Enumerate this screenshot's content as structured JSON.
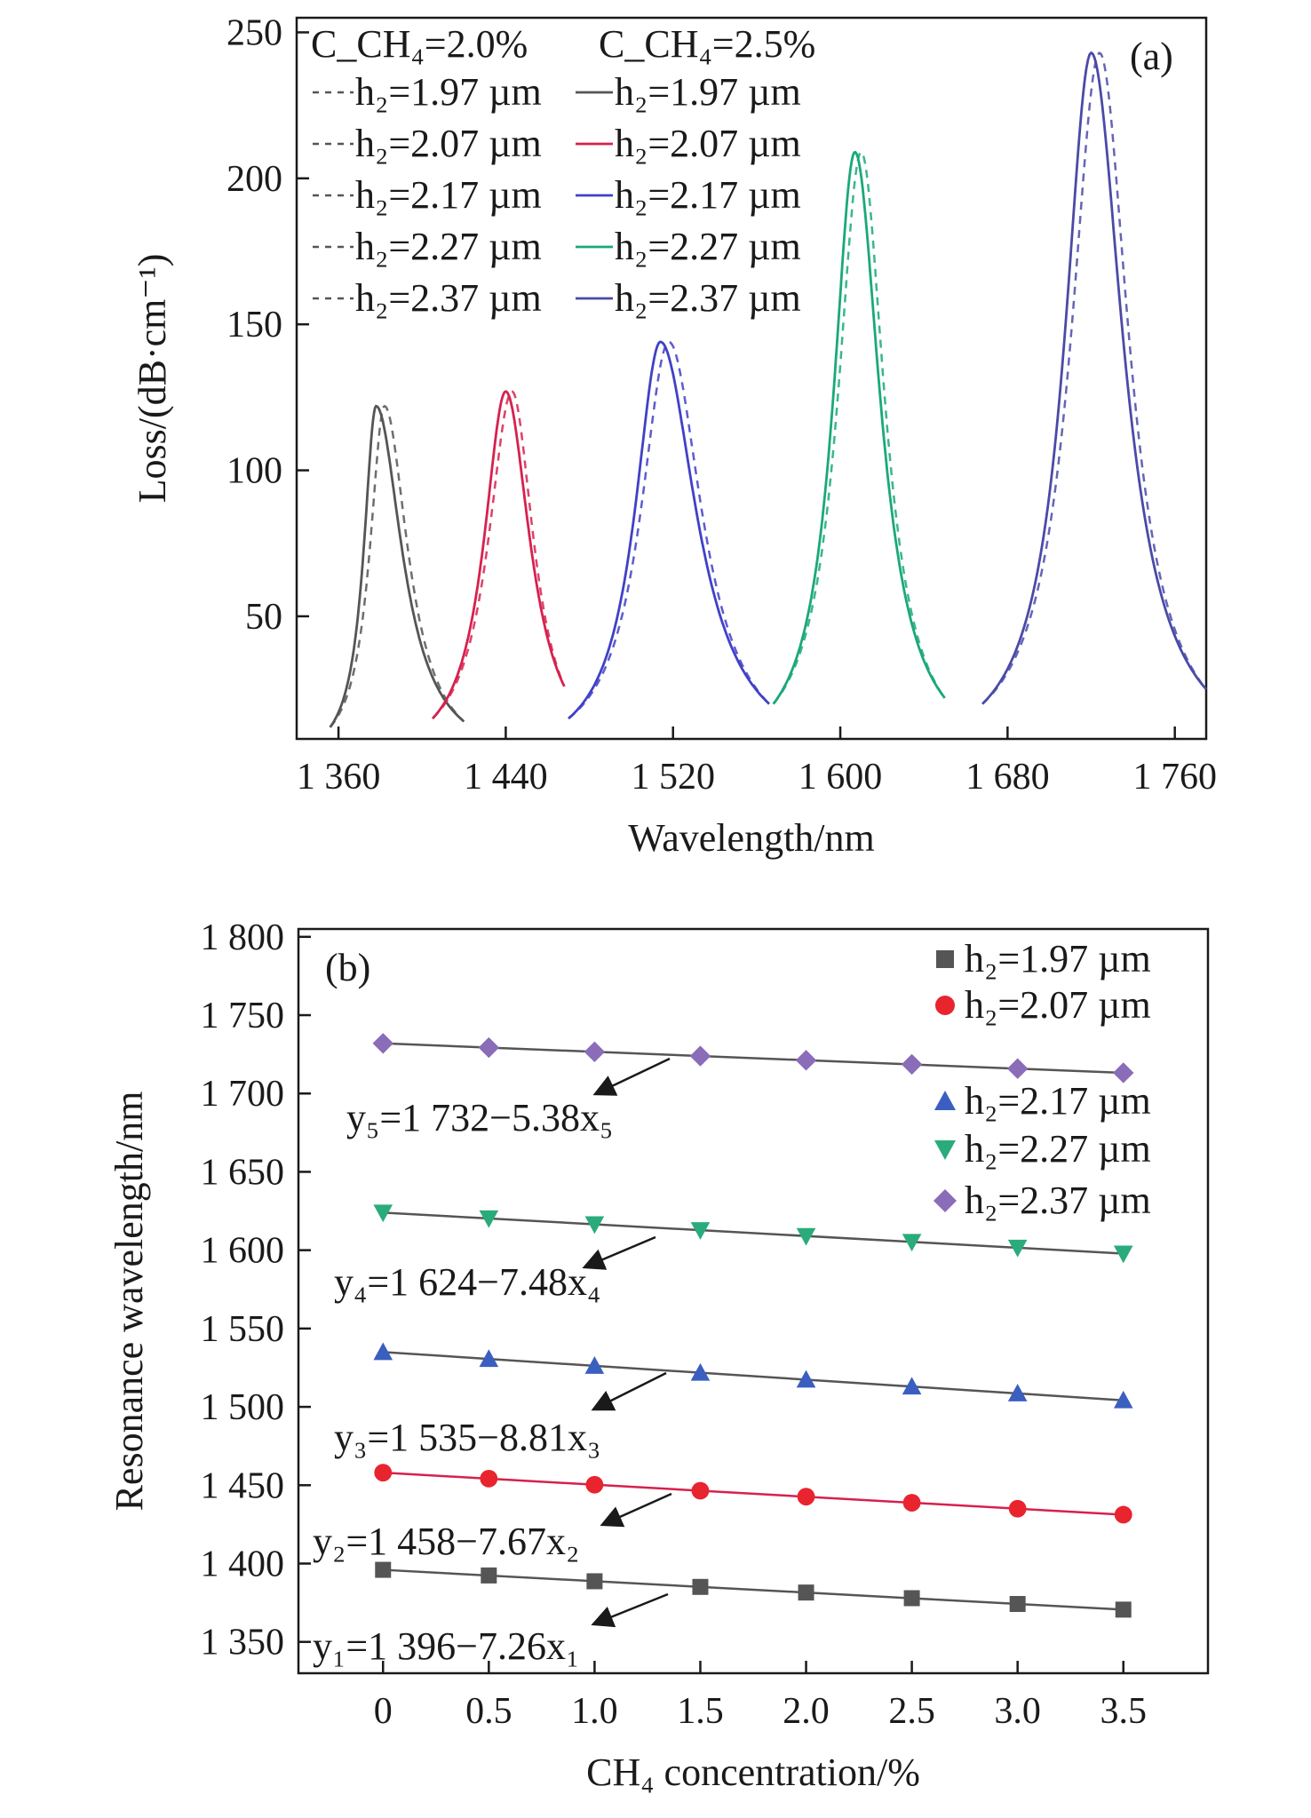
{
  "chart_data": [
    {
      "type": "line",
      "panel_label": "(a)",
      "xlabel": "Wavelength/nm",
      "ylabel": "Loss/(dB·cm⁻¹)",
      "xlim": [
        1340,
        1775
      ],
      "ylim": [
        8,
        255
      ],
      "x_ticks": [
        1360,
        1440,
        1520,
        1600,
        1680,
        1760
      ],
      "x_tick_labels": [
        "1 360",
        "1 440",
        "1 520",
        "1 600",
        "1 680",
        "1 760"
      ],
      "y_ticks": [
        50,
        100,
        150,
        200,
        250
      ],
      "y_tick_labels": [
        "50",
        "100",
        "150",
        "200",
        "250"
      ],
      "legend": {
        "headers": [
          "C_CH₄=2.0%",
          "C_CH₄=2.5%"
        ],
        "entries": [
          {
            "dashed": "h₂=1.97 µm",
            "solid": "h₂=1.97 µm"
          },
          {
            "dashed": "h₂=2.07 µm",
            "solid": "h₂=2.07 µm"
          },
          {
            "dashed": "h₂=2.17 µm",
            "solid": "h₂=2.17 µm"
          },
          {
            "dashed": "h₂=2.27 µm",
            "solid": "h₂=2.27 µm"
          },
          {
            "dashed": "h₂=2.37 µm",
            "solid": "h₂=2.37 µm"
          }
        ],
        "placement": "top-left"
      },
      "grid": false,
      "series": [
        {
          "peak_dashed": 1382,
          "peak_solid": 1378,
          "peak_loss": 122,
          "range": [
            1356,
            1420
          ],
          "end_loss_left": 12,
          "end_loss_right": 14,
          "color": "#555555"
        },
        {
          "peak_dashed": 1443,
          "peak_solid": 1440,
          "peak_loss": 127,
          "range": [
            1405,
            1468
          ],
          "end_loss_left": 15,
          "end_loss_right": 26,
          "color": "#d6214d"
        },
        {
          "peak_dashed": 1518,
          "peak_solid": 1514,
          "peak_loss": 144,
          "range": [
            1470,
            1566
          ],
          "end_loss_left": 15,
          "end_loss_right": 20,
          "color": "#4040c8"
        },
        {
          "peak_dashed": 1610,
          "peak_solid": 1607,
          "peak_loss": 209,
          "range": [
            1568,
            1650
          ],
          "end_loss_left": 20,
          "end_loss_right": 22,
          "color": "#1aa87a"
        },
        {
          "peak_dashed": 1724,
          "peak_solid": 1720,
          "peak_loss": 243,
          "range": [
            1668,
            1775
          ],
          "end_loss_left": 20,
          "end_loss_right": 25,
          "color": "#4a4aa8"
        }
      ]
    },
    {
      "type": "scatter",
      "panel_label": "(b)",
      "xlabel": "CH₄ concentration/%",
      "ylabel": "Resonance wavelength/nm",
      "xlim": [
        -0.4,
        3.9
      ],
      "ylim": [
        1330,
        1805
      ],
      "x": [
        0,
        0.5,
        1.0,
        1.5,
        2.0,
        2.5,
        3.0,
        3.5
      ],
      "x_tick_labels": [
        "0",
        "0.5",
        "1.0",
        "1.5",
        "2.0",
        "2.5",
        "3.0",
        "3.5"
      ],
      "y_ticks": [
        1350,
        1400,
        1450,
        1500,
        1550,
        1600,
        1650,
        1700,
        1750,
        1800
      ],
      "y_tick_labels": [
        "1 350",
        "1 400",
        "1 450",
        "1 500",
        "1 550",
        "1 600",
        "1 650",
        "1 700",
        "1 750",
        "1 800"
      ],
      "grid": false,
      "legend_placement": "top-right",
      "series": [
        {
          "name": "h₂=1.97 µm",
          "marker": "square",
          "color": "#555555",
          "line_color": "#555555",
          "values": [
            1396,
            1392.4,
            1388.7,
            1385.1,
            1381.5,
            1377.9,
            1374.2,
            1370.6
          ],
          "fit": "y₁=1 396−7.26x₁",
          "intercept": 1396,
          "slope": -7.26
        },
        {
          "name": "h₂=2.07 µm",
          "marker": "circle",
          "color": "#e8242f",
          "line_color": "#d6214d",
          "values": [
            1458,
            1454.2,
            1450.3,
            1446.5,
            1442.7,
            1438.8,
            1435.0,
            1431.2
          ],
          "fit": "y₂=1 458−7.67x₂",
          "intercept": 1458,
          "slope": -7.67
        },
        {
          "name": "h₂=2.17 µm",
          "marker": "triangle-up",
          "color": "#3a5fc0",
          "line_color": "#555555",
          "values": [
            1535,
            1530.6,
            1526.2,
            1521.8,
            1517.4,
            1513.0,
            1508.6,
            1504.2
          ],
          "fit": "y₃=1 535−8.81x₃",
          "intercept": 1535,
          "slope": -8.81
        },
        {
          "name": "h₂=2.27 µm",
          "marker": "triangle-down",
          "color": "#2aab7c",
          "line_color": "#555555",
          "values": [
            1624,
            1620.3,
            1616.5,
            1612.8,
            1609.0,
            1605.3,
            1601.6,
            1597.8
          ],
          "fit": "y₄=1 624−7.48x₄",
          "intercept": 1624,
          "slope": -7.48
        },
        {
          "name": "h₂=2.37 µm",
          "marker": "diamond",
          "color": "#8a6cb8",
          "line_color": "#555555",
          "values": [
            1732,
            1729.3,
            1726.6,
            1723.9,
            1721.2,
            1718.6,
            1715.9,
            1713.2
          ],
          "fit": "y₅=1 732−5.38x₅",
          "intercept": 1732,
          "slope": -5.38
        }
      ]
    }
  ]
}
